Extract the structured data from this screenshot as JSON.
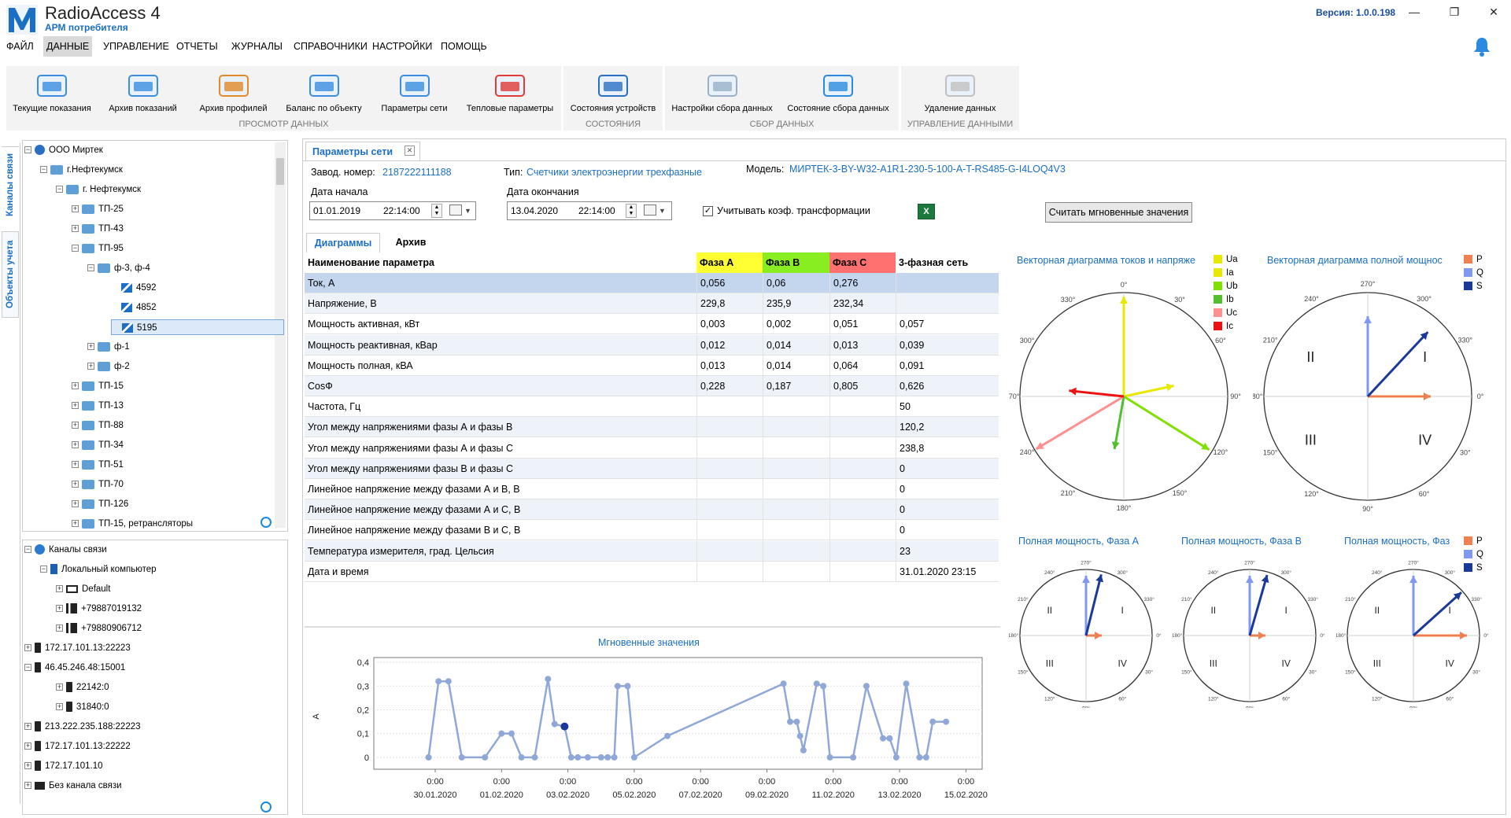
{
  "app": {
    "title": "RadioAccess 4",
    "subtitle": "АРМ потребителя",
    "version": "Версия:  1.0.0.198"
  },
  "menu": [
    "ФАЙЛ",
    "ДАННЫЕ",
    "УПРАВЛЕНИЕ",
    "ОТЧЕТЫ",
    "ЖУРНАЛЫ",
    "СПРАВОЧНИКИ",
    "НАСТРОЙКИ",
    "ПОМОЩЬ"
  ],
  "ribbon": {
    "groups": [
      {
        "label": "ПРОСМОТР ДАННЫХ",
        "buttons": [
          "Текущие показания",
          "Архив показаний",
          "Архив профилей",
          "Баланс по объекту",
          "Параметры сети",
          "Тепловые параметры"
        ]
      },
      {
        "label": "СОСТОЯНИЯ",
        "buttons": [
          "Состояния устройств"
        ]
      },
      {
        "label": "СБОР ДАННЫХ",
        "buttons": [
          "Настройки сбора данных",
          "Состояние сбора данных"
        ]
      },
      {
        "label": "УПРАВЛЕНИЕ ДАННЫМИ",
        "buttons": [
          "Удаление данных"
        ]
      }
    ]
  },
  "sidetabs": [
    "Каналы связи",
    "Объекты учета"
  ],
  "objects_tree": [
    "ООО Миртек",
    "г.Нефтекумск",
    "г. Нефтекумск",
    "ТП-25",
    "ТП-43",
    "ТП-95",
    "ф-3, ф-4",
    "4592",
    "4852",
    "5195",
    "ф-1",
    "ф-2",
    "ТП-15",
    "ТП-13",
    "ТП-88",
    "ТП-34",
    "ТП-51",
    "ТП-70",
    "ТП-126",
    "ТП-15, ретрансляторы"
  ],
  "channels_tree": [
    "Каналы связи",
    "Локальный компьютер",
    "Default",
    "+79887019132",
    "+79880906712",
    "172.17.101.13:22223",
    "46.45.246.48:15001",
    "22142:0",
    "31840:0",
    "213.222.235.188:22223",
    "172.17.101.13:22222",
    "172.17.101.10",
    "Без канала связи"
  ],
  "doc_tab": "Параметры сети",
  "device": {
    "serial_label": "Завод. номер:",
    "serial": "2187222111188",
    "type_label": "Тип:",
    "type": "Счетчики электроэнергии трехфазные",
    "model_label": "Модель:",
    "model": "МИРТЕК-3-BY-W32-A1R1-230-5-100-A-T-RS485-G-I4LOQ4V3"
  },
  "filters": {
    "start_label": "Дата начала",
    "start_date": "01.01.2019",
    "start_time": "22:14:00",
    "end_label": "Дата окончания",
    "end_date": "13.04.2020",
    "end_time": "22:14:00",
    "transform_label": "Учитывать коэф. трансформации",
    "read_button": "Считать мгновенные значения"
  },
  "subtabs": [
    "Диаграммы",
    "Архив"
  ],
  "grid": {
    "headers": [
      "Наименование параметра",
      "Фаза А",
      "Фаза В",
      "Фаза С",
      "3-фазная сеть"
    ],
    "header_colors": [
      "#ffffff",
      "#ffff33",
      "#88ee22",
      "#ff7070",
      "#ffffff"
    ],
    "rows": [
      [
        "Ток, А",
        "0,056",
        "0,06",
        "0,276",
        ""
      ],
      [
        "Напряжение, В",
        "229,8",
        "235,9",
        "232,34",
        ""
      ],
      [
        "Мощность активная, кВт",
        "0,003",
        "0,002",
        "0,051",
        "0,057"
      ],
      [
        "Мощность реактивная, кВар",
        "0,012",
        "0,014",
        "0,013",
        "0,039"
      ],
      [
        "Мощность полная, кВА",
        "0,013",
        "0,014",
        "0,064",
        "0,091"
      ],
      [
        "CosФ",
        "0,228",
        "0,187",
        "0,805",
        "0,626"
      ],
      [
        "Частота, Гц",
        "",
        "",
        "",
        "50"
      ],
      [
        "Угол между напряжениями фазы А и фазы В",
        "",
        "",
        "",
        "120,2"
      ],
      [
        "Угол между напряжениями фазы А и фазы С",
        "",
        "",
        "",
        "238,8"
      ],
      [
        "Угол между напряжениями фазы В и фазы С",
        "",
        "",
        "",
        "0"
      ],
      [
        "Линейное напряжение между фазами А и В, В",
        "",
        "",
        "",
        "0"
      ],
      [
        "Линейное напряжение между фазами А и С, В",
        "",
        "",
        "",
        "0"
      ],
      [
        "Линейное напряжение между фазами В и С, В",
        "",
        "",
        "",
        "0"
      ],
      [
        "Температура измерителя, град. Цельсия",
        "",
        "",
        "",
        "23"
      ],
      [
        "Дата и время",
        "",
        "",
        "",
        "31.01.2020 23:15"
      ]
    ]
  },
  "vector_diagram": {
    "title": "Векторная диаграмма токов и напряже",
    "legend": [
      {
        "name": "Ua",
        "color": "#e8e800"
      },
      {
        "name": "Ia",
        "color": "#e8e800"
      },
      {
        "name": "Ub",
        "color": "#80e000"
      },
      {
        "name": "Ib",
        "color": "#50c030"
      },
      {
        "name": "Uc",
        "color": "#ff9090"
      },
      {
        "name": "Ic",
        "color": "#ee1111"
      }
    ],
    "angle_labels": [
      "0°",
      "30°",
      "60°",
      "90°",
      "120°",
      "150°",
      "180°",
      "210°",
      "240°",
      "270°",
      "300°",
      "330°"
    ]
  },
  "power_diagram": {
    "title": "Векторная диаграмма полной мощнос",
    "legend": [
      {
        "name": "P",
        "color": "#f08050"
      },
      {
        "name": "Q",
        "color": "#8099f0"
      },
      {
        "name": "S",
        "color": "#1a3a9a"
      }
    ],
    "angle_labels": [
      "270°",
      "300°",
      "330°",
      "0°",
      "30°",
      "60°",
      "90°",
      "120°",
      "150°",
      "180°",
      "210°",
      "240°"
    ],
    "quadrants": [
      "I",
      "II",
      "III",
      "IV"
    ]
  },
  "phase_diagrams": [
    {
      "title": "Полная мощность, Фаза А"
    },
    {
      "title": "Полная мощность, Фаза В"
    },
    {
      "title": "Полная мощность, Фаз"
    }
  ],
  "phase_legend": [
    {
      "name": "P",
      "color": "#f08050"
    },
    {
      "name": "Q",
      "color": "#8099f0"
    },
    {
      "name": "S",
      "color": "#1a3a9a"
    }
  ],
  "chart_data": {
    "type": "line",
    "title": "Мгновенные значения",
    "ylabel": "A",
    "xlabel": "",
    "ylim": [
      -0.05,
      0.42
    ],
    "yticks": [
      0,
      0.1,
      0.2,
      0.3,
      0.4
    ],
    "ytick_labels": [
      "0",
      "0,1",
      "0,2",
      "0,3",
      "0,4"
    ],
    "xticks": [
      "30.01.2020",
      "01.02.2020",
      "03.02.2020",
      "05.02.2020",
      "07.02.2020",
      "09.02.2020",
      "11.02.2020",
      "13.02.2020",
      "15.02.2020"
    ],
    "xtick_time": "0:00",
    "x_days": [
      -0.2,
      0.1,
      0.4,
      0.8,
      1.5,
      2.0,
      2.3,
      2.6,
      3.0,
      3.4,
      3.6,
      3.9,
      4.1,
      4.3,
      4.6,
      5.0,
      5.2,
      5.4,
      5.5,
      5.8,
      6.0,
      7.0,
      10.5,
      10.7,
      10.9,
      11.0,
      11.1,
      11.5,
      11.7,
      11.9,
      12.6,
      13.0,
      13.5,
      13.7,
      13.9,
      14.2,
      14.6,
      14.8,
      15.0,
      15.4
    ],
    "values": [
      0,
      0.32,
      0.32,
      0,
      0,
      0.1,
      0.1,
      0,
      0,
      0.33,
      0.14,
      0.13,
      0,
      0,
      0,
      0,
      0,
      0,
      0.3,
      0.3,
      0,
      0.09,
      0.31,
      0.15,
      0.15,
      0.09,
      0.03,
      0.31,
      0.3,
      0,
      0,
      0.3,
      0.08,
      0.08,
      0,
      0.31,
      0,
      0,
      0.15,
      0.15
    ],
    "x_start_label": "30.01.2020",
    "highlight_index": 11
  }
}
